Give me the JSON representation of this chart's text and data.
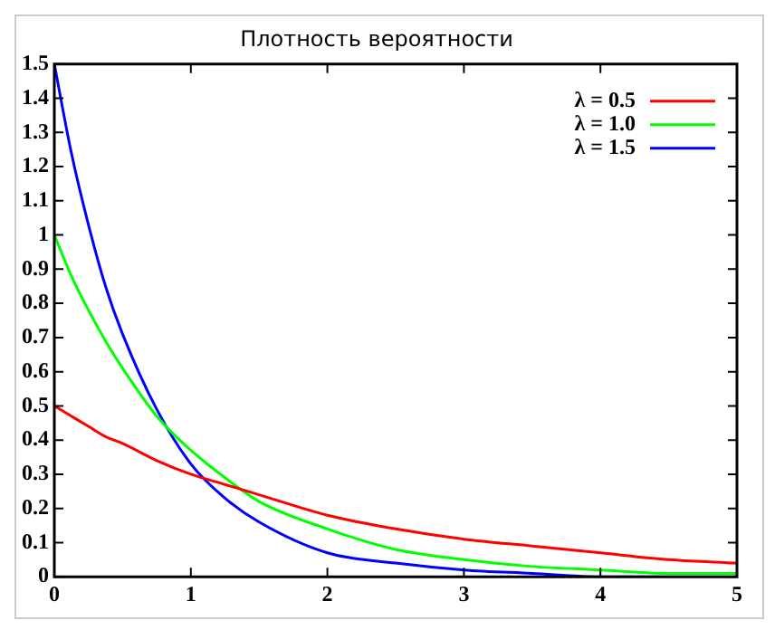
{
  "chart_data": {
    "type": "line",
    "title": "Плотность вероятности",
    "x": [
      0,
      0.125,
      0.25,
      0.375,
      0.5,
      0.75,
      1,
      1.25,
      1.5,
      2,
      2.5,
      3,
      3.5,
      4,
      4.5,
      5
    ],
    "series": [
      {
        "name": "λ = 0.5",
        "color": "#ff0000",
        "values": [
          0.5,
          0.47,
          0.44,
          0.41,
          0.39,
          0.34,
          0.3,
          0.27,
          0.24,
          0.18,
          0.14,
          0.11,
          0.09,
          0.07,
          0.05,
          0.04
        ]
      },
      {
        "name": "λ = 1.0",
        "color": "#00ff00",
        "values": [
          1,
          0.88,
          0.78,
          0.69,
          0.61,
          0.47,
          0.37,
          0.29,
          0.22,
          0.14,
          0.08,
          0.05,
          0.03,
          0.02,
          0.01,
          0.01
        ]
      },
      {
        "name": "λ = 1.5",
        "color": "#0000ff",
        "values": [
          1.5,
          1.24,
          1.03,
          0.85,
          0.71,
          0.49,
          0.33,
          0.23,
          0.16,
          0.07,
          0.04,
          0.02,
          0.01,
          0,
          0,
          0
        ]
      }
    ],
    "xlim": [
      0,
      5
    ],
    "xticks": [
      0,
      1,
      2,
      3,
      4,
      5
    ],
    "ylim": [
      0,
      1.5
    ],
    "yticks": [
      0,
      0.1,
      0.2,
      0.3,
      0.4,
      0.5,
      0.6,
      0.7,
      0.8,
      0.9,
      1,
      1.1,
      1.2,
      1.3,
      1.4,
      1.5
    ],
    "grid": false,
    "legend": "top right",
    "marker": "none",
    "line_style": "solid"
  }
}
